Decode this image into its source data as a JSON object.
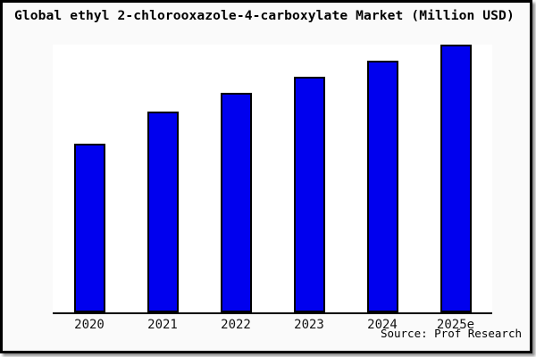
{
  "frame": {
    "background": "#fafafa",
    "border_color": "#000000"
  },
  "chart": {
    "title": "Global ethyl 2-chlorooxazole-4-carboxylate Market (Million USD)",
    "source": "Source: Prof Research",
    "colors": {
      "bar_fill": "#0000ee",
      "bar_border": "#000000",
      "axis": "#000000",
      "plot_bg": "#ffffff",
      "label": "#111111"
    }
  },
  "chart_data": {
    "type": "bar",
    "title": "Global ethyl 2-chlorooxazole-4-carboxylate Market (Million USD)",
    "categories": [
      "2020",
      "2021",
      "2022",
      "2023",
      "2024",
      "2025e"
    ],
    "values": [
      63,
      75,
      82,
      88,
      94,
      100
    ],
    "value_note": "no y-axis tick labels shown; values estimated from bar heights with tallest bar (2025e) = 100",
    "xlabel": "",
    "ylabel": "",
    "ylim": [
      0,
      100
    ],
    "grid": false,
    "legend": false,
    "source": "Source: Prof Research"
  }
}
